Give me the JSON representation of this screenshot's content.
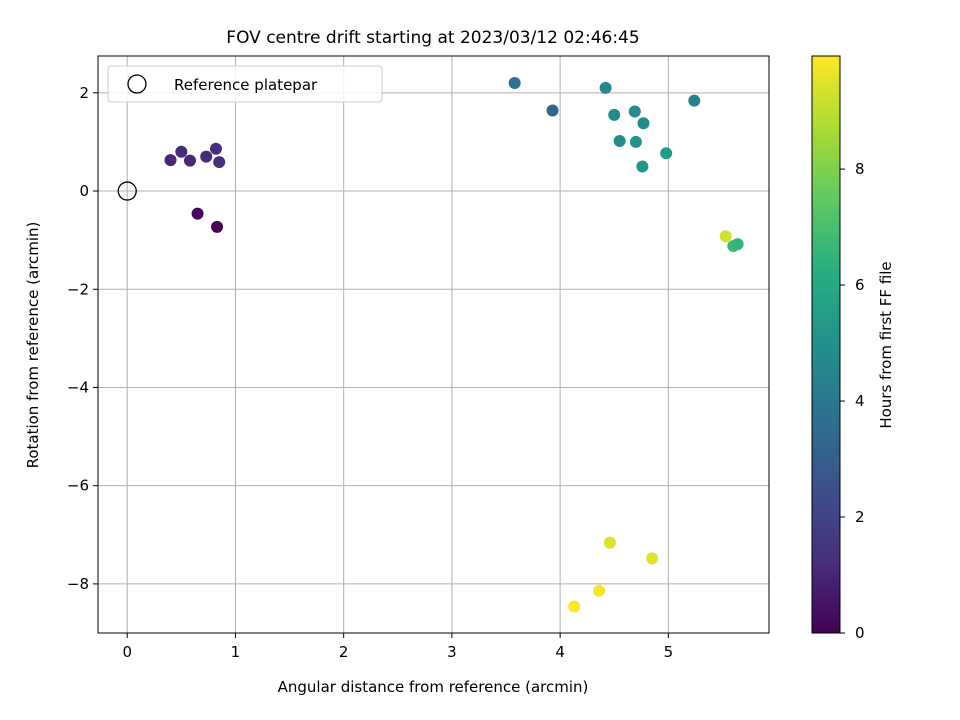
{
  "chart_data": {
    "type": "scatter",
    "title": "FOV centre drift starting at 2023/03/12 02:46:45",
    "xlabel": "Angular distance from reference (arcmin)",
    "ylabel": "Rotation from reference (arcmin)",
    "xlim": [
      -0.27,
      5.93
    ],
    "ylim": [
      -9.0,
      2.75
    ],
    "xticks": [
      0,
      1,
      2,
      3,
      4,
      5
    ],
    "yticks": [
      -8,
      -6,
      -4,
      -2,
      0,
      2
    ],
    "grid": true,
    "legend": {
      "position": "top-left",
      "entries": [
        {
          "label": "Reference platepar",
          "marker": "open-circle"
        }
      ]
    },
    "reference_point": {
      "x": 0,
      "y": 0
    },
    "colorbar": {
      "label": "Hours from first FF file",
      "colormap": "viridis",
      "range": [
        0,
        9.95
      ],
      "ticks": [
        0,
        2,
        4,
        6,
        8
      ]
    },
    "points": [
      {
        "x": 0.65,
        "y": -0.46,
        "hours": 0.2
      },
      {
        "x": 0.83,
        "y": -0.73,
        "hours": 0.05
      },
      {
        "x": 0.4,
        "y": 0.63,
        "hours": 1.0
      },
      {
        "x": 0.5,
        "y": 0.8,
        "hours": 1.1
      },
      {
        "x": 0.58,
        "y": 0.62,
        "hours": 1.05
      },
      {
        "x": 0.73,
        "y": 0.7,
        "hours": 1.15
      },
      {
        "x": 0.82,
        "y": 0.86,
        "hours": 1.2
      },
      {
        "x": 0.85,
        "y": 0.59,
        "hours": 1.25
      },
      {
        "x": 3.58,
        "y": 2.2,
        "hours": 3.8
      },
      {
        "x": 3.93,
        "y": 1.64,
        "hours": 3.4
      },
      {
        "x": 4.42,
        "y": 2.1,
        "hours": 4.6
      },
      {
        "x": 4.5,
        "y": 1.55,
        "hours": 4.7
      },
      {
        "x": 4.55,
        "y": 1.02,
        "hours": 4.8
      },
      {
        "x": 4.69,
        "y": 1.62,
        "hours": 4.75
      },
      {
        "x": 4.7,
        "y": 1.0,
        "hours": 5.05
      },
      {
        "x": 4.77,
        "y": 1.38,
        "hours": 4.85
      },
      {
        "x": 4.76,
        "y": 0.5,
        "hours": 5.2
      },
      {
        "x": 4.98,
        "y": 0.77,
        "hours": 5.4
      },
      {
        "x": 5.24,
        "y": 1.84,
        "hours": 4.4
      },
      {
        "x": 5.53,
        "y": -0.92,
        "hours": 9.3
      },
      {
        "x": 5.6,
        "y": -1.12,
        "hours": 6.7
      },
      {
        "x": 5.64,
        "y": -1.08,
        "hours": 6.55
      },
      {
        "x": 4.13,
        "y": -8.46,
        "hours": 9.9
      },
      {
        "x": 4.36,
        "y": -8.14,
        "hours": 9.8
      },
      {
        "x": 4.46,
        "y": -7.16,
        "hours": 9.45
      },
      {
        "x": 4.85,
        "y": -7.48,
        "hours": 9.5
      }
    ]
  }
}
